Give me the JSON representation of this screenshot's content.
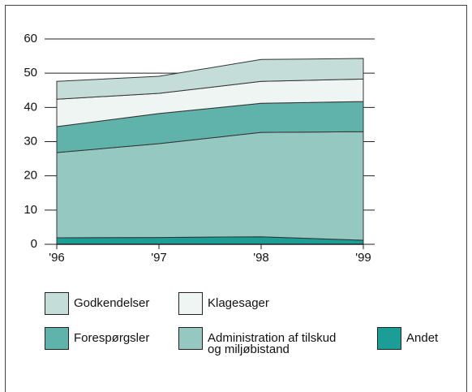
{
  "chart_data": {
    "type": "stacked_area",
    "categories": [
      "'96",
      "'97",
      "'98",
      "'99"
    ],
    "series": [
      {
        "name": "Andet",
        "color": "#1a9e96",
        "values": [
          1.9,
          2.0,
          2.2,
          1.2
        ]
      },
      {
        "name": "Administration af tilskud og miljøbistand",
        "color": "#96c8c2",
        "values": [
          24.9,
          27.4,
          30.5,
          31.7
        ]
      },
      {
        "name": "Forespørgsler",
        "color": "#5fb3ab",
        "values": [
          7.6,
          8.8,
          8.5,
          8.8
        ]
      },
      {
        "name": "Klagesager",
        "color": "#eef5f3",
        "values": [
          8.0,
          5.9,
          6.4,
          6.6
        ]
      },
      {
        "name": "Godkendelser",
        "color": "#c5ddd9",
        "values": [
          5.2,
          5.0,
          6.4,
          6.0
        ]
      }
    ],
    "ylim": [
      0,
      60
    ],
    "yticks": [
      0,
      10,
      20,
      30,
      40,
      50,
      60
    ],
    "grid": true
  }
}
